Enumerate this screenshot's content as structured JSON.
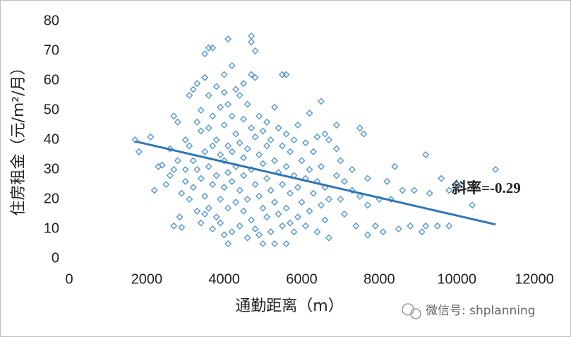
{
  "chart_data": {
    "type": "scatter",
    "y_label": "住房租金（元/m²/月）",
    "x_label": "通勤距离（m）",
    "annotation": "斜率=-0.29",
    "xlim": [
      0,
      12000
    ],
    "ylim": [
      0,
      80
    ],
    "xticks": [
      0,
      2000,
      4000,
      6000,
      8000,
      10000,
      12000
    ],
    "yticks": [
      0,
      10,
      20,
      30,
      40,
      50,
      60,
      70,
      80
    ],
    "series": [
      {
        "color": "#5b9bd5",
        "x": [
          1700,
          1800,
          2100,
          2200,
          2300,
          2400,
          2500,
          2600,
          2600,
          2700,
          2700,
          2700,
          2800,
          2800,
          2850,
          2900,
          2900,
          3000,
          3000,
          3000,
          3100,
          3100,
          3100,
          3200,
          3200,
          3200,
          3300,
          3300,
          3300,
          3300,
          3400,
          3400,
          3400,
          3400,
          3500,
          3500,
          3500,
          3500,
          3500,
          3600,
          3600,
          3600,
          3600,
          3600,
          3700,
          3700,
          3700,
          3700,
          3700,
          3800,
          3800,
          3800,
          3800,
          3900,
          3900,
          3900,
          3900,
          4000,
          4000,
          4000,
          4000,
          4000,
          4000,
          4100,
          4100,
          4100,
          4100,
          4100,
          4100,
          4200,
          4200,
          4200,
          4200,
          4200,
          4300,
          4300,
          4300,
          4300,
          4400,
          4400,
          4400,
          4400,
          4500,
          4500,
          4500,
          4500,
          4500,
          4600,
          4600,
          4600,
          4600,
          4700,
          4700,
          4700,
          4700,
          4700,
          4700,
          4800,
          4800,
          4800,
          4800,
          4800,
          4900,
          4900,
          4900,
          4900,
          5000,
          5000,
          5000,
          5000,
          5100,
          5100,
          5100,
          5100,
          5200,
          5200,
          5200,
          5300,
          5300,
          5300,
          5300,
          5400,
          5400,
          5400,
          5500,
          5500,
          5500,
          5500,
          5600,
          5600,
          5600,
          5600,
          5600,
          5700,
          5700,
          5700,
          5800,
          5800,
          5800,
          5900,
          5900,
          5900,
          6000,
          6000,
          6100,
          6100,
          6100,
          6200,
          6200,
          6200,
          6300,
          6300,
          6400,
          6400,
          6400,
          6500,
          6500,
          6500,
          6600,
          6600,
          6600,
          6700,
          6700,
          6700,
          6900,
          6900,
          6900,
          7000,
          7000,
          7100,
          7100,
          7300,
          7300,
          7400,
          7500,
          7500,
          7600,
          7700,
          7700,
          7700,
          7900,
          8000,
          8100,
          8200,
          8300,
          8400,
          8500,
          8600,
          8800,
          8900,
          9100,
          9200,
          9200,
          9300,
          9500,
          9600,
          9800,
          9800,
          10000,
          10400,
          11000
        ],
        "values": [
          40,
          36,
          41,
          23,
          31,
          31.5,
          25,
          37,
          28,
          30,
          48,
          11,
          46,
          33,
          14,
          10.5,
          22,
          40,
          30,
          26,
          55,
          38,
          20,
          57,
          33,
          24,
          59,
          46,
          30,
          16,
          43,
          50,
          27,
          12,
          61,
          69,
          36,
          21,
          15,
          71,
          55,
          44,
          31,
          17,
          71,
          48,
          38,
          25,
          10,
          58,
          40,
          28,
          14,
          51,
          35,
          20,
          12,
          62,
          56,
          45,
          33,
          24,
          8,
          74,
          52,
          38,
          29,
          17,
          5,
          65,
          48,
          36,
          26,
          9,
          57,
          42,
          31,
          19,
          55,
          39,
          23,
          11,
          59,
          47,
          34,
          28,
          16,
          52,
          37,
          20,
          7,
          75,
          73,
          62,
          44,
          30,
          13,
          70,
          61,
          41,
          25,
          10,
          48,
          35,
          21,
          8,
          43,
          32,
          17,
          5,
          46,
          38,
          27,
          14,
          40,
          23,
          9,
          51,
          33,
          19,
          5,
          44,
          29,
          15,
          62,
          38,
          25,
          11,
          62,
          42,
          31,
          17,
          5,
          36,
          22,
          12,
          40,
          28,
          9,
          45,
          24,
          14,
          33,
          19,
          39,
          27,
          11,
          49,
          30,
          16,
          36,
          22,
          41,
          26,
          9,
          53,
          31,
          18,
          42,
          24,
          13,
          40,
          20,
          7,
          45,
          37,
          28,
          33,
          20,
          26,
          15,
          30,
          23,
          11,
          44,
          21,
          42,
          27,
          18,
          8,
          11,
          20,
          9,
          26,
          20,
          31,
          10,
          23,
          11,
          23,
          9,
          35,
          11,
          22,
          11,
          27,
          11,
          23,
          25,
          18,
          30
        ]
      },
      {
        "type": "line",
        "color": "#2e75b6",
        "x": [
          1700,
          11000
        ],
        "values": [
          39.5,
          11.5
        ]
      }
    ]
  },
  "watermark": "微信号: shplanning"
}
